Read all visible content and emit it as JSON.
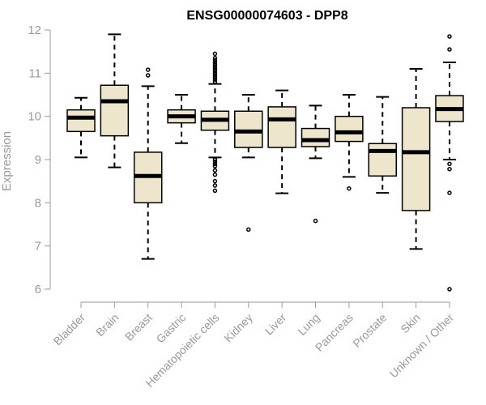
{
  "chart_data": {
    "type": "boxplot",
    "title": "ENSG00000074603 - DPP8",
    "xlabel": "",
    "ylabel": "Expression",
    "ylim": [
      6,
      12
    ],
    "yticks": [
      6,
      7,
      8,
      9,
      10,
      11,
      12
    ],
    "box_fill": "#ede6cc",
    "box_stroke": "#000000",
    "axis_color": "#999999",
    "categories": [
      "Bladder",
      "Brain",
      "Breast",
      "Gastric",
      "Hematopoietic cells",
      "Kidney",
      "Liver",
      "Lung",
      "Pancreas",
      "Prostate",
      "Skin",
      "Unknown / Other"
    ],
    "boxes": [
      {
        "name": "Bladder",
        "whisker_low": 9.05,
        "q1": 9.65,
        "median": 9.97,
        "q3": 10.15,
        "whisker_high": 10.43,
        "outliers": []
      },
      {
        "name": "Brain",
        "whisker_low": 8.82,
        "q1": 9.55,
        "median": 10.35,
        "q3": 10.72,
        "whisker_high": 11.9,
        "outliers": []
      },
      {
        "name": "Breast",
        "whisker_low": 6.7,
        "q1": 8.0,
        "median": 8.62,
        "q3": 9.17,
        "whisker_high": 10.7,
        "outliers": [
          10.95,
          11.08
        ]
      },
      {
        "name": "Gastric",
        "whisker_low": 9.38,
        "q1": 9.85,
        "median": 10.0,
        "q3": 10.15,
        "whisker_high": 10.5,
        "outliers": []
      },
      {
        "name": "Hematopoietic cells",
        "whisker_low": 9.05,
        "q1": 9.68,
        "median": 9.92,
        "q3": 10.12,
        "whisker_high": 10.75,
        "outliers": [
          10.8,
          10.85,
          10.9,
          10.95,
          11.0,
          11.05,
          11.1,
          11.15,
          11.2,
          11.25,
          11.3,
          11.35,
          11.45,
          9.0,
          8.95,
          8.9,
          8.85,
          8.75,
          8.65,
          8.5,
          8.4,
          8.28
        ]
      },
      {
        "name": "Kidney",
        "whisker_low": 9.05,
        "q1": 9.28,
        "median": 9.65,
        "q3": 10.12,
        "whisker_high": 10.5,
        "outliers": [
          7.38
        ]
      },
      {
        "name": "Liver",
        "whisker_low": 8.22,
        "q1": 9.28,
        "median": 9.93,
        "q3": 10.22,
        "whisker_high": 10.6,
        "outliers": []
      },
      {
        "name": "Lung",
        "whisker_low": 9.03,
        "q1": 9.3,
        "median": 9.45,
        "q3": 9.72,
        "whisker_high": 10.25,
        "outliers": [
          7.58
        ]
      },
      {
        "name": "Pancreas",
        "whisker_low": 8.6,
        "q1": 9.42,
        "median": 9.63,
        "q3": 10.0,
        "whisker_high": 10.5,
        "outliers": [
          8.33
        ]
      },
      {
        "name": "Prostate",
        "whisker_low": 8.23,
        "q1": 8.62,
        "median": 9.2,
        "q3": 9.37,
        "whisker_high": 10.45,
        "outliers": []
      },
      {
        "name": "Skin",
        "whisker_low": 6.93,
        "q1": 7.82,
        "median": 9.17,
        "q3": 10.2,
        "whisker_high": 11.1,
        "outliers": []
      },
      {
        "name": "Unknown / Other",
        "whisker_low": 9.0,
        "q1": 9.88,
        "median": 10.17,
        "q3": 10.48,
        "whisker_high": 11.25,
        "outliers": [
          11.55,
          11.85,
          8.9,
          8.78,
          8.23,
          6.0
        ]
      }
    ]
  }
}
